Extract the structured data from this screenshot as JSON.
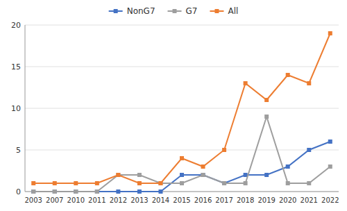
{
  "chart_data": {
    "type": "line",
    "categories": [
      "2003",
      "2007",
      "2010",
      "2011",
      "2012",
      "2013",
      "2014",
      "2015",
      "2016",
      "2017",
      "2018",
      "2019",
      "2020",
      "2021",
      "2022"
    ],
    "series": [
      {
        "name": "NonG7",
        "color": "#4472c4",
        "marker": "square",
        "values": [
          0,
          0,
          0,
          0,
          0,
          0,
          0,
          2,
          2,
          1,
          2,
          2,
          3,
          5,
          6
        ]
      },
      {
        "name": "G7",
        "color": "#9e9e9e",
        "marker": "square",
        "values": [
          0,
          0,
          0,
          0,
          2,
          2,
          1,
          1,
          2,
          1,
          1,
          9,
          1,
          1,
          3
        ]
      },
      {
        "name": "All",
        "color": "#ed7d31",
        "marker": "square",
        "values": [
          1,
          1,
          1,
          1,
          2,
          1,
          1,
          4,
          3,
          5,
          13,
          11,
          14,
          13,
          19
        ]
      }
    ],
    "ylim": [
      0,
      20
    ],
    "yticks": [
      0,
      5,
      10,
      15,
      20
    ],
    "grid": true,
    "legend": "top"
  }
}
